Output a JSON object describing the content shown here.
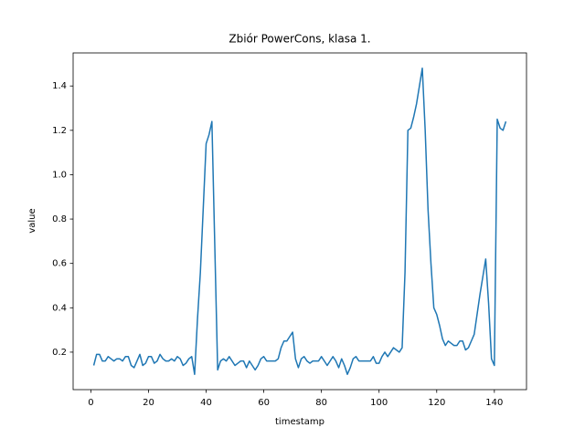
{
  "chart_data": {
    "type": "line",
    "title": "Zbiór PowerCons, klasa 1.",
    "x_label": "timestamp",
    "y_label": "value",
    "x": [
      1,
      2,
      3,
      4,
      5,
      6,
      7,
      8,
      9,
      10,
      11,
      12,
      13,
      14,
      15,
      16,
      17,
      18,
      19,
      20,
      21,
      22,
      23,
      24,
      25,
      26,
      27,
      28,
      29,
      30,
      31,
      32,
      33,
      34,
      35,
      36,
      37,
      38,
      39,
      40,
      41,
      42,
      43,
      44,
      45,
      46,
      47,
      48,
      49,
      50,
      51,
      52,
      53,
      54,
      55,
      56,
      57,
      58,
      59,
      60,
      61,
      62,
      63,
      64,
      65,
      66,
      67,
      68,
      69,
      70,
      71,
      72,
      73,
      74,
      75,
      76,
      77,
      78,
      79,
      80,
      81,
      82,
      83,
      84,
      85,
      86,
      87,
      88,
      89,
      90,
      91,
      92,
      93,
      94,
      95,
      96,
      97,
      98,
      99,
      100,
      101,
      102,
      103,
      104,
      105,
      106,
      107,
      108,
      109,
      110,
      111,
      112,
      113,
      114,
      115,
      116,
      117,
      118,
      119,
      120,
      121,
      122,
      123,
      124,
      125,
      126,
      127,
      128,
      129,
      130,
      131,
      132,
      133,
      134,
      135,
      136,
      137,
      138,
      139,
      140,
      141,
      142,
      143,
      144
    ],
    "series": [
      {
        "name": "value",
        "color": "#1f77b4",
        "values": [
          0.14,
          0.19,
          0.19,
          0.16,
          0.16,
          0.18,
          0.17,
          0.16,
          0.17,
          0.17,
          0.16,
          0.18,
          0.18,
          0.14,
          0.13,
          0.16,
          0.19,
          0.14,
          0.15,
          0.18,
          0.18,
          0.15,
          0.16,
          0.19,
          0.17,
          0.16,
          0.16,
          0.17,
          0.16,
          0.18,
          0.17,
          0.14,
          0.15,
          0.17,
          0.18,
          0.1,
          0.35,
          0.56,
          0.85,
          1.14,
          1.18,
          1.24,
          0.68,
          0.12,
          0.16,
          0.17,
          0.16,
          0.18,
          0.16,
          0.14,
          0.15,
          0.16,
          0.16,
          0.13,
          0.16,
          0.14,
          0.12,
          0.14,
          0.17,
          0.18,
          0.16,
          0.16,
          0.16,
          0.16,
          0.17,
          0.22,
          0.25,
          0.25,
          0.27,
          0.29,
          0.17,
          0.13,
          0.17,
          0.18,
          0.16,
          0.15,
          0.16,
          0.16,
          0.16,
          0.18,
          0.16,
          0.14,
          0.16,
          0.18,
          0.16,
          0.13,
          0.17,
          0.14,
          0.1,
          0.13,
          0.17,
          0.18,
          0.16,
          0.16,
          0.16,
          0.16,
          0.16,
          0.18,
          0.15,
          0.15,
          0.18,
          0.2,
          0.18,
          0.2,
          0.22,
          0.21,
          0.2,
          0.22,
          0.56,
          1.2,
          1.21,
          1.26,
          1.32,
          1.4,
          1.48,
          1.2,
          0.84,
          0.6,
          0.4,
          0.37,
          0.32,
          0.26,
          0.23,
          0.25,
          0.24,
          0.23,
          0.23,
          0.25,
          0.25,
          0.21,
          0.22,
          0.25,
          0.28,
          0.37,
          0.46,
          0.54,
          0.62,
          0.42,
          0.17,
          0.14,
          1.25,
          1.21,
          1.2,
          1.24
        ]
      }
    ],
    "xlim": [
      -6.15,
      151.15
    ],
    "ylim": [
      0.031,
      1.549
    ],
    "xticks": [
      0,
      20,
      40,
      60,
      80,
      100,
      120,
      140
    ],
    "yticks": [
      0.2,
      0.4,
      0.6,
      0.8,
      {
        "value": 1,
        "label": "1.0"
      },
      1.2,
      1.4
    ]
  }
}
